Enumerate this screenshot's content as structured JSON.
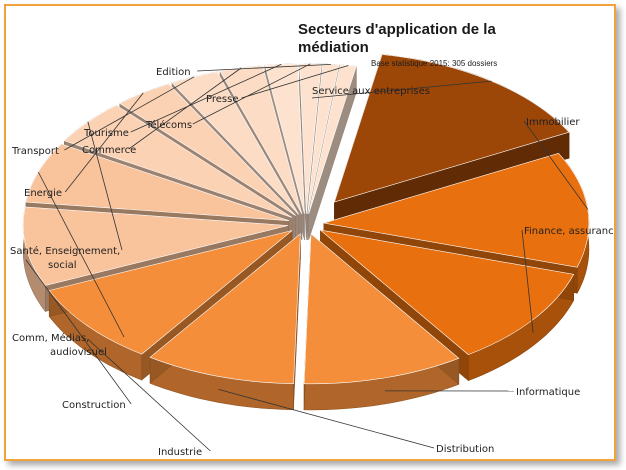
{
  "chart_data": {
    "type": "pie",
    "title": "Secteurs d'application de la médiation",
    "subtitle": "Base statistique 2015: 305 dossiers",
    "categories": [
      "Service aux entreprises",
      "Immobilier",
      "Finance, assurance",
      "Informatique",
      "Distribution",
      "Industrie",
      "Construction",
      "Comm, Médias, audiovisuel",
      "Santé, Enseignement, social",
      "Energie",
      "Transport",
      "Commerce",
      "Tourisme",
      "Télécoms",
      "Edition",
      "Presse"
    ],
    "values": [
      44,
      38,
      33,
      30,
      28,
      27,
      26,
      20,
      15,
      11,
      9,
      8,
      6,
      4,
      3,
      3
    ],
    "colors": [
      "#9c4708",
      "#e8700e",
      "#e8700e",
      "#f48e3a",
      "#f48e3a",
      "#f48e3a",
      "#f9c39c",
      "#f9c39c",
      "#fbd2b4",
      "#fbd2b4",
      "#fcdcc4",
      "#fcdcc4",
      "#fde3cf",
      "#fde3cf",
      "#fde3cf",
      "#fde3cf"
    ],
    "legend": "none"
  }
}
